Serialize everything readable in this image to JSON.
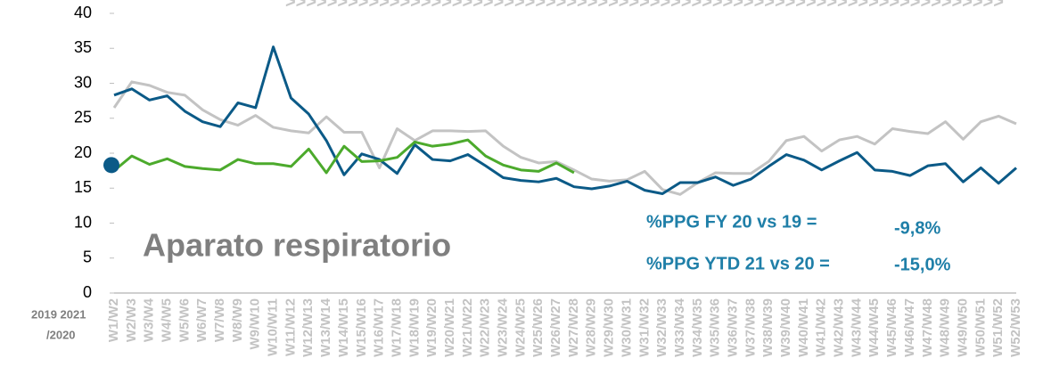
{
  "chart_data": {
    "type": "line",
    "categories": [
      "W1/W2",
      "W2/W3",
      "W3/W4",
      "W4/W5",
      "W5/W6",
      "W6/W7",
      "W7/W8",
      "W8/W9",
      "W9/W10",
      "W10/W11",
      "W11/W12",
      "W12/W13",
      "W13/W14",
      "W14/W15",
      "W15/W16",
      "W16/W17",
      "W17/W18",
      "W18/W19",
      "W19/W20",
      "W20/W21",
      "W21/W22",
      "W22/W23",
      "W23/W24",
      "W24/W25",
      "W25/W26",
      "W26/W27",
      "W27/W28",
      "W28/W29",
      "W29/W30",
      "W30/W31",
      "W31/W32",
      "W32/W33",
      "W33/W34",
      "W34/W35",
      "W35/W36",
      "W36/W37",
      "W37/W38",
      "W38/W39",
      "W39/W40",
      "W40/W41",
      "W41/W42",
      "W42/W43",
      "W43/W44",
      "W44/W45",
      "W45/W46",
      "W46/W47",
      "W47/W48",
      "W48/W49",
      "W49/W50",
      "W50/W51",
      "W51/W52",
      "W52/W53"
    ],
    "series": [
      {
        "color": "#c3c3c3",
        "values": [
          26.5,
          30.2,
          29.7,
          28.7,
          28.3,
          26.2,
          24.8,
          24.0,
          25.4,
          23.7,
          23.2,
          22.9,
          25.2,
          23.0,
          23.0,
          17.9,
          23.5,
          21.8,
          23.2,
          23.2,
          23.1,
          23.2,
          21.0,
          19.4,
          18.6,
          18.8,
          17.6,
          16.3,
          16.0,
          16.2,
          17.4,
          14.8,
          14.1,
          15.8,
          17.2,
          17.1,
          17.1,
          18.8,
          21.8,
          22.4,
          20.3,
          21.9,
          22.4,
          21.3,
          23.5,
          23.1,
          22.8,
          24.5,
          22.0,
          24.5,
          25.3,
          24.2
        ]
      },
      {
        "color": "#0b5a87",
        "values": [
          28.3,
          29.2,
          27.6,
          28.2,
          26.0,
          24.5,
          23.8,
          27.2,
          26.5,
          35.2,
          27.9,
          25.6,
          21.8,
          16.9,
          19.9,
          19.1,
          17.1,
          21.2,
          19.1,
          18.9,
          19.8,
          18.2,
          16.5,
          16.1,
          15.9,
          16.4,
          15.2,
          14.9,
          15.3,
          16.0,
          14.7,
          14.2,
          15.8,
          15.8,
          16.6,
          15.4,
          16.3,
          18.1,
          19.8,
          19.0,
          17.6,
          18.9,
          20.1,
          17.6,
          17.4,
          16.8,
          18.2,
          18.5,
          15.9,
          17.9,
          15.7,
          17.9
        ]
      },
      {
        "color": "#4caa2c",
        "values": [
          17.5,
          19.6,
          18.4,
          19.2,
          18.1,
          17.8,
          17.6,
          19.1,
          18.5,
          18.5,
          18.1,
          20.6,
          17.2,
          21.0,
          18.8,
          18.9,
          19.4,
          21.6,
          21.0,
          21.3,
          21.9,
          19.6,
          18.3,
          17.6,
          17.4,
          18.6,
          17.2,
          null,
          null,
          null,
          null,
          null,
          null,
          null,
          null,
          null,
          null,
          null,
          null,
          null,
          null,
          null,
          null,
          null,
          null,
          null,
          null,
          null,
          null,
          null,
          null,
          null
        ]
      }
    ],
    "start_marker": {
      "value": 18.3,
      "color": "#0b5a87"
    },
    "ylim": [
      0,
      40
    ],
    "yticks": [
      0,
      5,
      10,
      15,
      20,
      25,
      30,
      35,
      40
    ],
    "annotations": {
      "topic": "Aparato respiratorio",
      "fy_label": "%PPG FY 20 vs 19 =",
      "fy_value": "-9,8%",
      "ytd_label": "%PPG YTD 21 vs 20 =",
      "ytd_value": "-15,0%",
      "years": "2019 2021",
      "years2": "/2020",
      "chevrons": ">>>>>>>>>>>>>>>>>>>>>>>>>>>>>>>>>>>>>>>>>>>>>>>>>>>>>>>>>>>>>>>>>>>>>"
    }
  }
}
